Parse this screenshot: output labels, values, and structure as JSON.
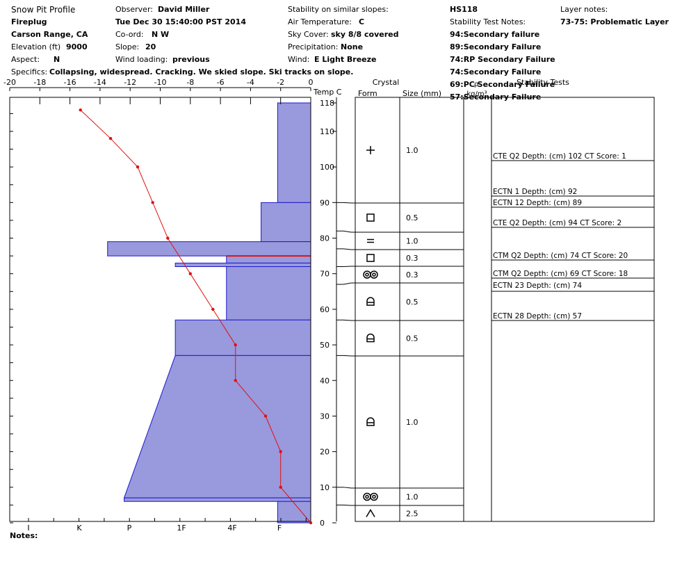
{
  "header": {
    "title": "Snow Pit Profile",
    "location": "Fireplug",
    "region": "Carson Range, CA",
    "elevation_label": "Elevation (ft)",
    "elevation_value": "9000",
    "aspect_label": "Aspect:",
    "aspect_value": "N",
    "specifics_label": "Specifics:",
    "specifics_value": "Collapsing, widespread. Cracking. We skied slope. Ski tracks on slope.",
    "observer_label": "Observer:",
    "observer_value": "David Miller",
    "datetime": "Tue Dec 30 15:40:00 PST 2014",
    "coord_label": "Co-ord:",
    "coord_value": "N  W",
    "slope_label": "Slope:",
    "slope_value": "20",
    "wind_loading_label": "Wind loading:",
    "wind_loading_value": "previous",
    "stability_label": "Stability on similar slopes:",
    "air_temp_label": "Air Temperature:",
    "air_temp_value": "C",
    "sky_label": "Sky Cover:",
    "sky_value": "sky 8/8 covered",
    "precip_label": "Precipitation:",
    "precip_value": "None",
    "wind_label": "Wind:",
    "wind_value": "E Light Breeze",
    "hs": "HS118",
    "stability_notes_label": "Stability Test Notes:",
    "stability_notes": [
      {
        "depth": "94:",
        "text": "Secondary failure"
      },
      {
        "depth": "89:",
        "text": "Secondary Failure"
      },
      {
        "depth": "74:",
        "text": "RP Secondary Failure"
      },
      {
        "depth": "74:",
        "text": "Secondary Failure"
      },
      {
        "depth": "69:",
        "text": "PC Secondary Failure"
      },
      {
        "depth": "57:",
        "text": "Secondary Failure"
      }
    ],
    "layer_notes_label": "Layer notes:",
    "layer_notes_value": "73-75: Problematic Layer"
  },
  "footer": {
    "notes_label": "Notes:"
  },
  "colors": {
    "hardness_fill": "#9999dd",
    "hardness_stroke": "#1a1acc",
    "temp_line": "#e01010",
    "grid": "#000000"
  },
  "chart_data": {
    "type": "snow-profile",
    "temp_axis": {
      "label": "Temp C",
      "ticks": [
        "-20",
        "-18",
        "-16",
        "-14",
        "-12",
        "-10",
        "-8",
        "-6",
        "-4",
        "-2",
        "0"
      ],
      "range": [
        -20,
        0
      ]
    },
    "height_axis": {
      "ticks": [
        "0",
        "10",
        "20",
        "30",
        "40",
        "50",
        "60",
        "70",
        "80",
        "90",
        "100",
        "110",
        "118"
      ],
      "range": [
        0,
        118
      ]
    },
    "hardness_axis": {
      "ticks": [
        "I",
        "K",
        "P",
        "1F",
        "4F",
        "F"
      ]
    },
    "temperature_profile": [
      {
        "height": 116,
        "temp": -15.3
      },
      {
        "height": 108,
        "temp": -13.3
      },
      {
        "height": 100,
        "temp": -11.5
      },
      {
        "height": 90,
        "temp": -10.5
      },
      {
        "height": 80,
        "temp": -9.5
      },
      {
        "height": 70,
        "temp": -8.0
      },
      {
        "height": 60,
        "temp": -6.5
      },
      {
        "height": 50,
        "temp": -5.0
      },
      {
        "height": 40,
        "temp": -5.0
      },
      {
        "height": 30,
        "temp": -3.0
      },
      {
        "height": 20,
        "temp": -2.0
      },
      {
        "height": 10,
        "temp": -2.0
      },
      {
        "height": 0,
        "temp": 0
      }
    ],
    "hardness_note": "hardness in temperature-axis units (width of bar from 0 toward -20)",
    "hardness_layers": [
      {
        "top": 118,
        "bottom": 90,
        "hardness": -2.2
      },
      {
        "top": 90,
        "bottom": 79,
        "hardness": -3.3
      },
      {
        "top": 79,
        "bottom": 75,
        "hardness": -13.5
      },
      {
        "top": 75,
        "bottom": 73,
        "hardness": -5.6
      },
      {
        "top": 73,
        "bottom": 72,
        "hardness": -9.0
      },
      {
        "top": 72,
        "bottom": 57,
        "hardness": -5.6
      },
      {
        "top": 57,
        "bottom": 47,
        "hardness": -9.0
      },
      {
        "top": 47,
        "bottom": 7,
        "hardness_top": -9.0,
        "hardness_bottom": -12.4
      },
      {
        "top": 7,
        "bottom": 6,
        "hardness": -12.4
      },
      {
        "top": 6,
        "bottom": 0,
        "hardness": -2.2
      }
    ],
    "problem_layer": {
      "height": 75
    },
    "crystal_header": {
      "title": "Crystal",
      "form": "Form",
      "size": "Size (mm)",
      "density": "kg/m³",
      "stability": "Stability Tests",
      "density_q": "ρ"
    },
    "crystal_layers": [
      {
        "top": 118,
        "bottom": 90,
        "form": "precip",
        "size": "1.0"
      },
      {
        "top": 90,
        "bottom": 82,
        "form": "faceted",
        "size": "0.5"
      },
      {
        "top": 82,
        "bottom": 77,
        "form": "surface-hoar",
        "size": "1.0"
      },
      {
        "top": 77,
        "bottom": 72,
        "form": "faceted",
        "size": "0.3"
      },
      {
        "top": 72,
        "bottom": 67,
        "form": "rounded-mixed",
        "size": "0.3"
      },
      {
        "top": 67,
        "bottom": 57,
        "form": "depth-hoar-rounding",
        "size": "0.5"
      },
      {
        "top": 57,
        "bottom": 47,
        "form": "depth-hoar-rounding",
        "size": "0.5"
      },
      {
        "top": 47,
        "bottom": 10,
        "form": "depth-hoar-rounding",
        "size": "1.0"
      },
      {
        "top": 10,
        "bottom": 5,
        "form": "rounded-mixed",
        "size": "1.0"
      },
      {
        "top": 5,
        "bottom": 0,
        "form": "depth-hoar",
        "size": "2.5"
      }
    ],
    "stability_tests": [
      {
        "text": "CTE Q2 Depth: (cm) 102 CT Score: 1",
        "line": 102
      },
      {
        "text": "ECTN 1   Depth: (cm) 92",
        "line": 92
      },
      {
        "text": "ECTN 12   Depth: (cm) 89",
        "line": 89
      },
      {
        "text": "CTE Q2 Depth: (cm) 94 CT Score: 2",
        "line": 83
      },
      {
        "text": "CTM Q2 Depth: (cm) 74 CT Score: 20",
        "line": 74
      },
      {
        "text": "CTM Q2 Depth: (cm) 69 CT Score: 18",
        "line": 69
      },
      {
        "text": "ECTN 23   Depth: (cm) 74",
        "line": 65
      },
      {
        "text": "ECTN 28   Depth: (cm) 57",
        "line": 57
      }
    ]
  }
}
